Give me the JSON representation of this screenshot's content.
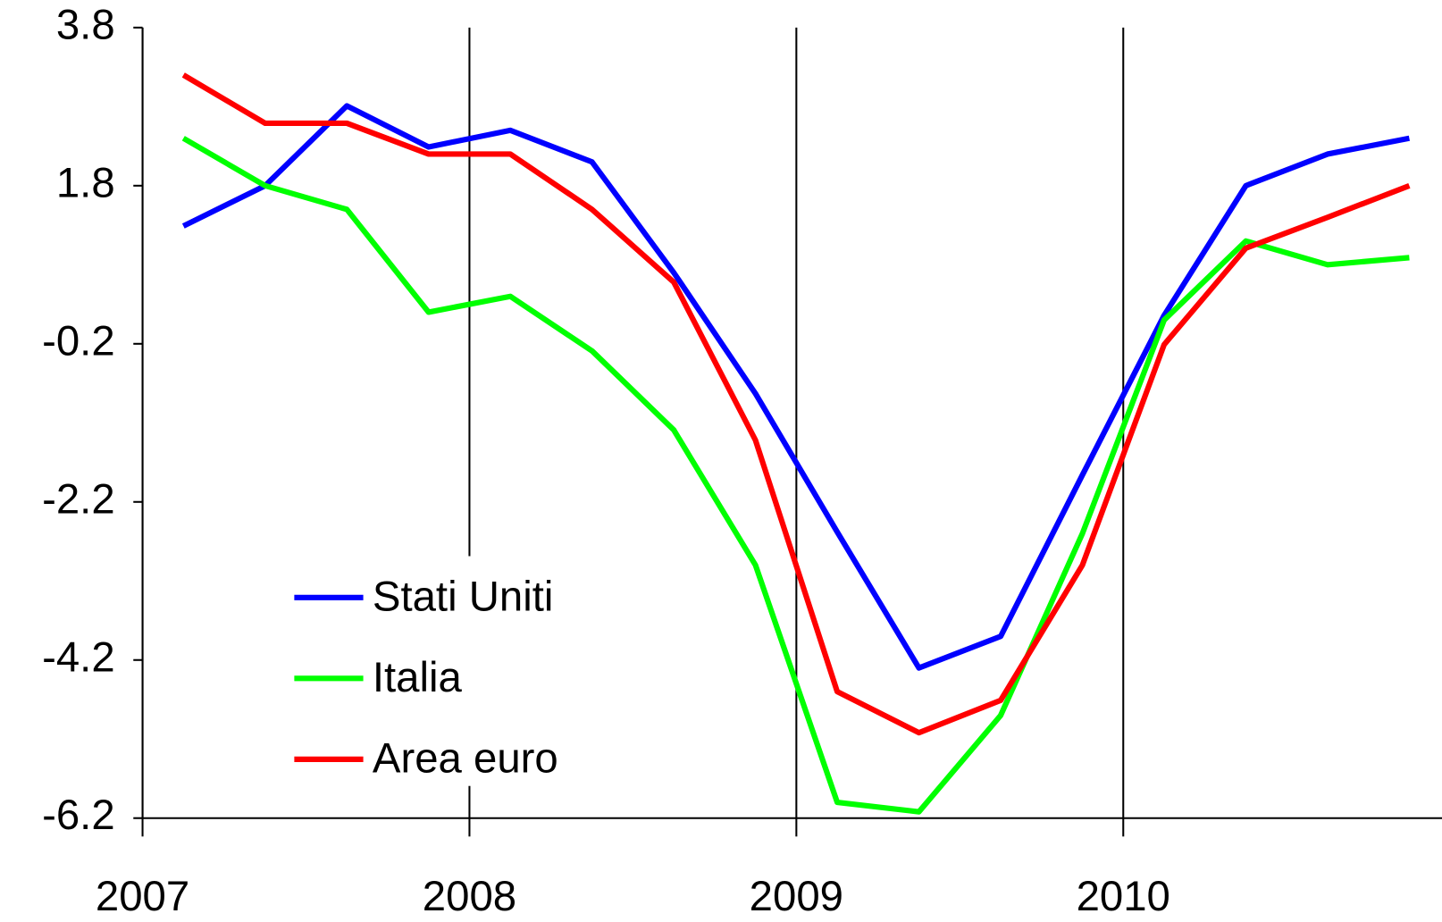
{
  "chart_data": {
    "type": "line",
    "x": [
      2007.125,
      2007.375,
      2007.625,
      2007.875,
      2008.125,
      2008.375,
      2008.625,
      2008.875,
      2009.125,
      2009.375,
      2009.625,
      2009.875,
      2010.125,
      2010.375,
      2010.625,
      2010.875
    ],
    "series": [
      {
        "name": "Stati Uniti",
        "color": "#0000ff",
        "values": [
          1.29,
          1.8,
          2.81,
          2.29,
          2.5,
          2.1,
          0.7,
          -0.83,
          -2.58,
          -4.3,
          -3.9,
          -1.86,
          0.16,
          1.8,
          2.2,
          2.4
        ]
      },
      {
        "name": "Italia",
        "color": "#00ff00",
        "values": [
          2.4,
          1.8,
          1.5,
          0.2,
          0.4,
          -0.29,
          -1.29,
          -3.0,
          -6.0,
          -6.12,
          -4.9,
          -2.6,
          0.1,
          1.1,
          0.8,
          0.89
        ]
      },
      {
        "name": "Area euro",
        "color": "#ff0000",
        "values": [
          3.2,
          2.59,
          2.59,
          2.2,
          2.2,
          1.5,
          0.58,
          -1.42,
          -4.6,
          -5.12,
          -4.71,
          -3.0,
          -0.21,
          1.01,
          1.4,
          1.8
        ]
      }
    ],
    "xlim": [
      2007,
      2010.975
    ],
    "xticks": [
      2007,
      2008,
      2009,
      2010
    ],
    "ylim": [
      -6.2,
      3.8
    ],
    "yticks": [
      3.8,
      1.8,
      -0.2,
      -2.2,
      -4.2,
      -6.2
    ],
    "grid": "x",
    "legend": "lower-left"
  }
}
